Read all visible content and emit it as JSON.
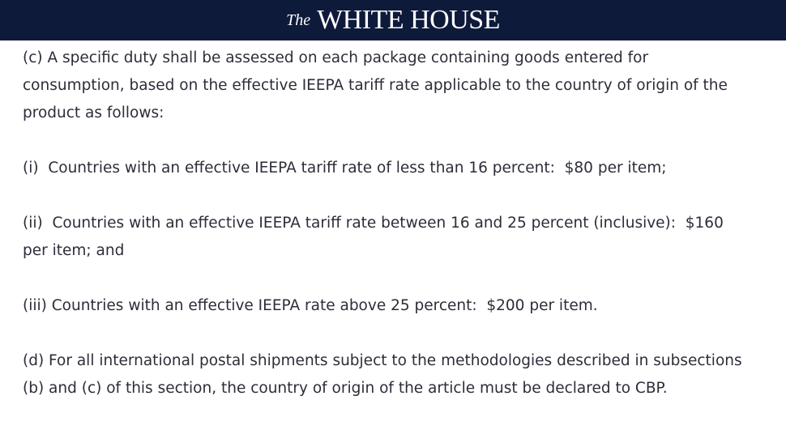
{
  "header": {
    "logo_prefix": "The",
    "logo": "WHITE HOUSE"
  },
  "paragraphs": [
    "(c) A specific duty shall be assessed on each package containing goods entered for consumption, based on the effective IEEPA tariff rate applicable to the country of origin of the product as follows:",
    "(i)  Countries with an effective IEEPA tariff rate of less than 16 percent:  $80 per item;",
    "(ii)  Countries with an effective IEEPA tariff rate between 16 and 25 percent (inclusive):  $160 per item; and",
    "(iii) Countries with an effective IEEPA rate above 25 percent:  $200 per item.",
    "(d) For all international postal shipments subject to the methodologies described in subsections (b) and (c) of this section, the country of origin of the article must be declared to CBP."
  ]
}
